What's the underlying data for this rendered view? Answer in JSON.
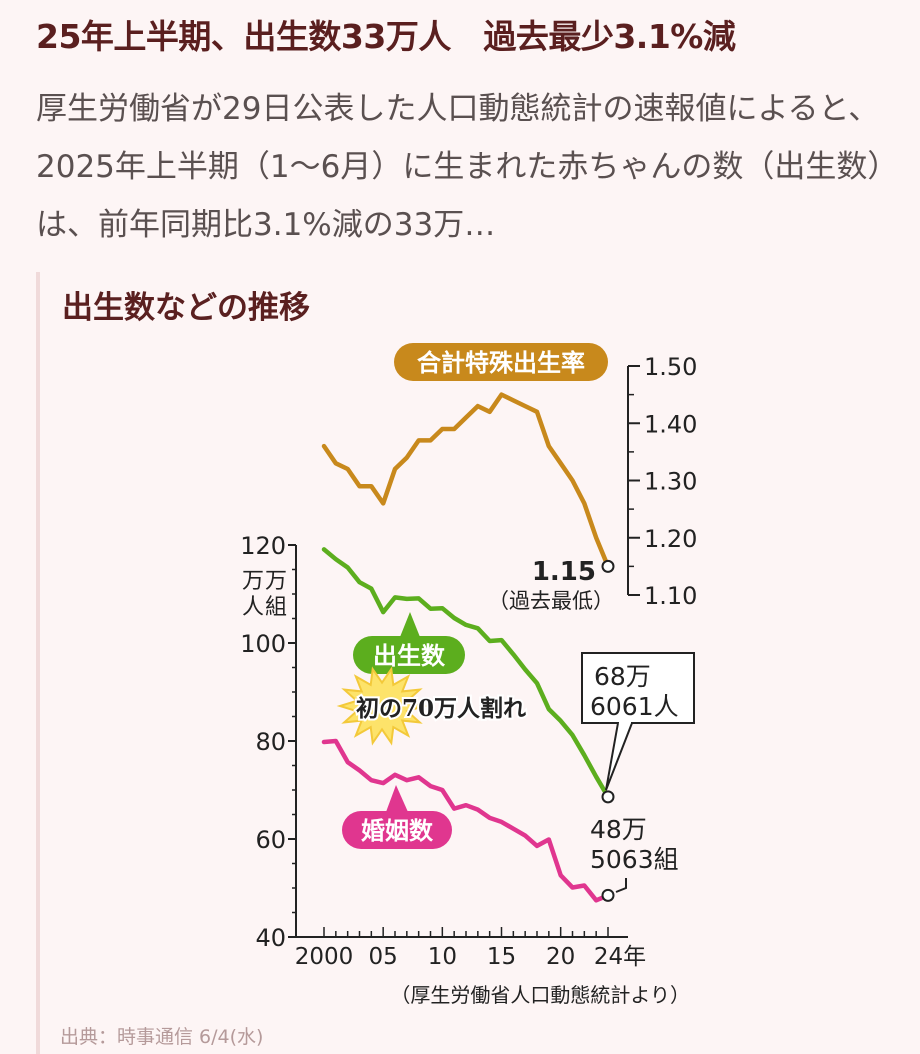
{
  "article": {
    "headline": "25年上半期、出生数33万人　過去最少3.1%減",
    "lead": "厚生労働省が29日公表した人口動態統計の速報値によると、2025年上半期（1〜6月）に生まれた赤ちゃんの数（出生数）は、前年同期比3.1%減の33万…"
  },
  "figure": {
    "title": "出生数などの推移",
    "note": "（厚生労働省人口動態統計より）",
    "source": "出典：時事通信 6/4(水)"
  },
  "chart_data": {
    "type": "line",
    "x": [
      2000,
      2001,
      2002,
      2003,
      2004,
      2005,
      2006,
      2007,
      2008,
      2009,
      2010,
      2011,
      2012,
      2013,
      2014,
      2015,
      2016,
      2017,
      2018,
      2019,
      2020,
      2021,
      2022,
      2023,
      2024
    ],
    "x_tick_labels": [
      "2000",
      "05",
      "10",
      "15",
      "20",
      "24年"
    ],
    "x_tick_values": [
      2000,
      2005,
      2010,
      2015,
      2020,
      2024
    ],
    "left_axis": {
      "ticks": [
        120,
        100,
        80,
        60,
        40
      ],
      "range": [
        40,
        120
      ],
      "unit_label_1": "万万",
      "unit_label_2": "人組"
    },
    "right_axis": {
      "ticks": [
        "1.50",
        "1.40",
        "1.30",
        "1.20",
        "1.10"
      ],
      "range": [
        1.1,
        1.5
      ]
    },
    "series": [
      {
        "name": "合計特殊出生率",
        "axis": "right",
        "color": "#c8891c",
        "values": [
          1.36,
          1.33,
          1.32,
          1.29,
          1.29,
          1.26,
          1.32,
          1.34,
          1.37,
          1.37,
          1.39,
          1.39,
          1.41,
          1.43,
          1.42,
          1.45,
          1.44,
          1.43,
          1.42,
          1.36,
          1.33,
          1.3,
          1.26,
          1.2,
          1.15
        ]
      },
      {
        "name": "出生数",
        "axis": "left",
        "color": "#5cae1e",
        "values": [
          119.1,
          117.1,
          115.4,
          112.4,
          111.1,
          106.3,
          109.3,
          109.0,
          109.1,
          107.0,
          107.1,
          105.1,
          103.7,
          103.0,
          100.4,
          100.6,
          97.7,
          94.6,
          91.8,
          86.5,
          84.1,
          81.2,
          77.1,
          72.7,
          68.6
        ]
      },
      {
        "name": "婚姻数",
        "axis": "left",
        "color": "#e0368f",
        "values": [
          79.8,
          80.0,
          75.7,
          74.0,
          72.0,
          71.4,
          73.1,
          72.0,
          72.6,
          70.8,
          70.0,
          66.2,
          66.9,
          66.0,
          64.3,
          63.5,
          62.1,
          60.7,
          58.6,
          59.9,
          52.6,
          50.1,
          50.5,
          47.5,
          48.5
        ]
      }
    ],
    "annotations": {
      "tfr_last_value": "1.15",
      "tfr_last_note": "（過去最低）",
      "births_last_1": "68万",
      "births_last_2": "6061人",
      "marriages_last_1": "48万",
      "marriages_last_2": "5063組",
      "burst_text": "初の70万人割れ"
    }
  }
}
